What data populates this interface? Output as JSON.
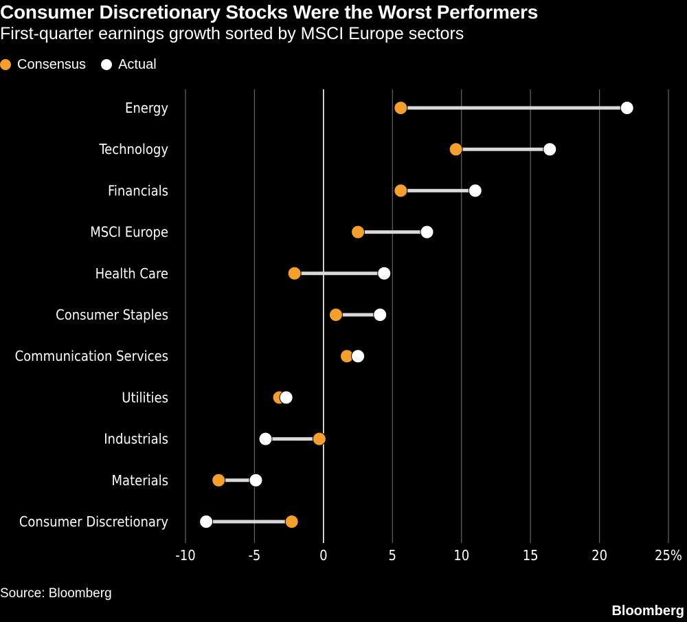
{
  "header": {
    "title": "Consumer Discretionary Stocks Were the Worst Performers",
    "subtitle": "First-quarter earnings growth sorted by MSCI Europe sectors"
  },
  "legend": [
    {
      "label": "Consensus",
      "color": "#f79f2d"
    },
    {
      "label": "Actual",
      "color": "#ffffff"
    }
  ],
  "footer": {
    "source": "Source: Bloomberg",
    "brand": "Bloomberg"
  },
  "colors": {
    "consensus": "#f79f2d",
    "actual": "#ffffff",
    "connector": "#d9d9d9",
    "grid": "#666666",
    "zero_line": "#ffffff",
    "background": "#000000"
  },
  "chart_data": {
    "type": "dumbbell",
    "title": "Consumer Discretionary Stocks Were the Worst Performers",
    "subtitle": "First-quarter earnings growth sorted by MSCI Europe sectors",
    "categories": [
      "Energy",
      "Technology",
      "Financials",
      "MSCI Europe",
      "Health Care",
      "Consumer Staples",
      "Communication Services",
      "Utilities",
      "Industrials",
      "Materials",
      "Consumer Discretionary"
    ],
    "series": [
      {
        "name": "Consensus",
        "values": [
          5.6,
          9.6,
          5.6,
          2.5,
          -2.1,
          0.9,
          1.7,
          -3.2,
          -0.3,
          -7.6,
          -2.3
        ]
      },
      {
        "name": "Actual",
        "values": [
          22.0,
          16.4,
          11.0,
          7.5,
          4.4,
          4.1,
          2.5,
          -2.7,
          -4.2,
          -4.9,
          -8.5
        ]
      }
    ],
    "xlim": [
      -10,
      25
    ],
    "xticks": [
      -10,
      -5,
      0,
      5,
      10,
      15,
      20,
      25
    ],
    "xtick_labels": [
      "-10",
      "-5",
      "0",
      "5",
      "10",
      "15",
      "20",
      "25%"
    ],
    "xlabel": "",
    "ylabel": "",
    "grid": "vertical",
    "legend_position": "top-left"
  }
}
